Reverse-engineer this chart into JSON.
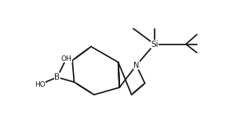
{
  "bg_color": "#ffffff",
  "line_color": "#1a1a1a",
  "lw": 1.3,
  "fs": 7.0,
  "fig_w": 2.88,
  "fig_h": 1.64,
  "dpi": 100,
  "xlim": [
    -0.05,
    1.45
  ],
  "ylim": [
    -0.1,
    1.05
  ],
  "BL": 0.195
}
